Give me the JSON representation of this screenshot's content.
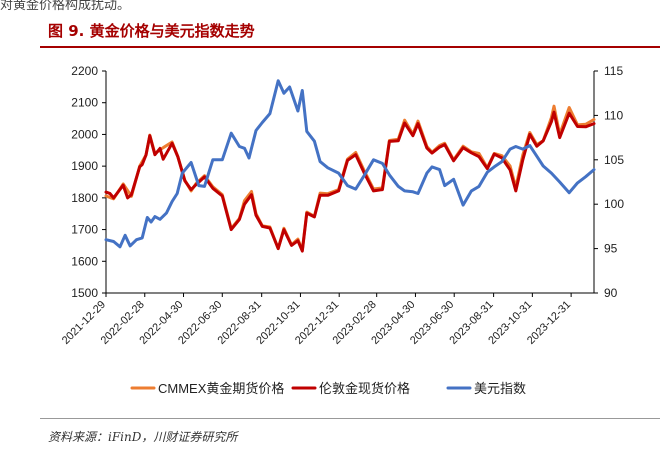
{
  "intro_text": "对黄金价格构成扰动。",
  "figure": {
    "title": "图 9.   黄金价格与美元指数走势"
  },
  "source": "资料来源：iFinD，川财证券研究所",
  "colors": {
    "cmmex": "#ED7D31",
    "london": "#C00000",
    "usd": "#4472C4",
    "title": "#A50000"
  },
  "chart_data": {
    "type": "line",
    "x_ticks": [
      "2021-12-29",
      "2022-02-28",
      "2022-04-30",
      "2022-06-30",
      "2022-08-31",
      "2022-10-31",
      "2022-12-31",
      "2023-02-28",
      "2023-04-30",
      "2023-06-30",
      "2023-08-31",
      "2023-10-31",
      "2023-12-31"
    ],
    "x_range": [
      "2021-12-29",
      "2024-02-05"
    ],
    "y_left": {
      "range": [
        1500,
        2200
      ],
      "ticks": [
        1500,
        1600,
        1700,
        1800,
        1900,
        2000,
        2100,
        2200
      ]
    },
    "y_right": {
      "range": [
        90,
        115
      ],
      "ticks": [
        90,
        95,
        100,
        105,
        110,
        115
      ]
    },
    "legend_position": "bottom",
    "series": [
      {
        "name": "CMMEX黄金期货价格",
        "axis": "left",
        "color_key": "cmmex",
        "points": [
          [
            "2021-12-29",
            1806
          ],
          [
            "2022-01-10",
            1797
          ],
          [
            "2022-01-25",
            1844
          ],
          [
            "2022-02-07",
            1805
          ],
          [
            "2022-02-20",
            1900
          ],
          [
            "2022-03-02",
            1935
          ],
          [
            "2022-03-08",
            1998
          ],
          [
            "2022-03-16",
            1940
          ],
          [
            "2022-03-29",
            1958
          ],
          [
            "2022-04-12",
            1976
          ],
          [
            "2022-04-21",
            1930
          ],
          [
            "2022-05-02",
            1856
          ],
          [
            "2022-05-12",
            1822
          ],
          [
            "2022-05-20",
            1846
          ],
          [
            "2022-06-02",
            1870
          ],
          [
            "2022-06-15",
            1835
          ],
          [
            "2022-06-30",
            1810
          ],
          [
            "2022-07-14",
            1703
          ],
          [
            "2022-07-27",
            1735
          ],
          [
            "2022-08-04",
            1791
          ],
          [
            "2022-08-15",
            1820
          ],
          [
            "2022-08-22",
            1750
          ],
          [
            "2022-09-01",
            1712
          ],
          [
            "2022-09-13",
            1708
          ],
          [
            "2022-09-26",
            1640
          ],
          [
            "2022-10-05",
            1704
          ],
          [
            "2022-10-17",
            1652
          ],
          [
            "2022-10-27",
            1670
          ],
          [
            "2022-11-03",
            1635
          ],
          [
            "2022-11-10",
            1755
          ],
          [
            "2022-11-22",
            1742
          ],
          [
            "2022-12-01",
            1815
          ],
          [
            "2022-12-13",
            1813
          ],
          [
            "2022-12-30",
            1826
          ],
          [
            "2023-01-13",
            1922
          ],
          [
            "2023-01-26",
            1943
          ],
          [
            "2023-02-08",
            1887
          ],
          [
            "2023-02-23",
            1828
          ],
          [
            "2023-03-09",
            1831
          ],
          [
            "2023-03-20",
            1981
          ],
          [
            "2023-04-03",
            1985
          ],
          [
            "2023-04-13",
            2045
          ],
          [
            "2023-04-26",
            2001
          ],
          [
            "2023-05-04",
            2042
          ],
          [
            "2023-05-18",
            1962
          ],
          [
            "2023-05-26",
            1944
          ],
          [
            "2023-06-07",
            1965
          ],
          [
            "2023-06-15",
            1972
          ],
          [
            "2023-06-29",
            1920
          ],
          [
            "2023-07-14",
            1963
          ],
          [
            "2023-07-27",
            1945
          ],
          [
            "2023-08-08",
            1940
          ],
          [
            "2023-08-21",
            1895
          ],
          [
            "2023-09-01",
            1940
          ],
          [
            "2023-09-13",
            1933
          ],
          [
            "2023-09-26",
            1900
          ],
          [
            "2023-10-05",
            1833
          ],
          [
            "2023-10-16",
            1935
          ],
          [
            "2023-10-27",
            2006
          ],
          [
            "2023-11-07",
            1968
          ],
          [
            "2023-11-17",
            1980
          ],
          [
            "2023-11-30",
            2053
          ],
          [
            "2023-12-04",
            2089
          ],
          [
            "2023-12-13",
            2000
          ],
          [
            "2023-12-28",
            2085
          ],
          [
            "2024-01-10",
            2030
          ],
          [
            "2024-01-23",
            2032
          ],
          [
            "2024-02-05",
            2047
          ]
        ]
      },
      {
        "name": "伦敦金现货价格",
        "axis": "left",
        "color_key": "london",
        "points": [
          [
            "2021-12-29",
            1818
          ],
          [
            "2022-01-04",
            1814
          ],
          [
            "2022-01-10",
            1800
          ],
          [
            "2022-01-25",
            1840
          ],
          [
            "2022-02-01",
            1800
          ],
          [
            "2022-02-07",
            1810
          ],
          [
            "2022-02-20",
            1898
          ],
          [
            "2022-02-24",
            1905
          ],
          [
            "2022-03-02",
            1935
          ],
          [
            "2022-03-08",
            1996
          ],
          [
            "2022-03-16",
            1936
          ],
          [
            "2022-03-24",
            1956
          ],
          [
            "2022-03-29",
            1922
          ],
          [
            "2022-04-12",
            1972
          ],
          [
            "2022-04-21",
            1930
          ],
          [
            "2022-05-02",
            1854
          ],
          [
            "2022-05-12",
            1826
          ],
          [
            "2022-05-20",
            1842
          ],
          [
            "2022-06-02",
            1866
          ],
          [
            "2022-06-15",
            1830
          ],
          [
            "2022-06-30",
            1806
          ],
          [
            "2022-07-14",
            1700
          ],
          [
            "2022-07-27",
            1732
          ],
          [
            "2022-08-04",
            1780
          ],
          [
            "2022-08-15",
            1810
          ],
          [
            "2022-08-22",
            1745
          ],
          [
            "2022-09-01",
            1710
          ],
          [
            "2022-09-13",
            1705
          ],
          [
            "2022-09-26",
            1640
          ],
          [
            "2022-10-05",
            1700
          ],
          [
            "2022-10-17",
            1650
          ],
          [
            "2022-10-27",
            1665
          ],
          [
            "2022-11-03",
            1632
          ],
          [
            "2022-11-10",
            1752
          ],
          [
            "2022-11-22",
            1740
          ],
          [
            "2022-12-01",
            1808
          ],
          [
            "2022-12-13",
            1808
          ],
          [
            "2022-12-30",
            1822
          ],
          [
            "2023-01-13",
            1918
          ],
          [
            "2023-01-26",
            1936
          ],
          [
            "2023-02-08",
            1880
          ],
          [
            "2023-02-23",
            1822
          ],
          [
            "2023-03-09",
            1826
          ],
          [
            "2023-03-20",
            1978
          ],
          [
            "2023-04-03",
            1980
          ],
          [
            "2023-04-13",
            2036
          ],
          [
            "2023-04-26",
            1996
          ],
          [
            "2023-05-04",
            2034
          ],
          [
            "2023-05-18",
            1957
          ],
          [
            "2023-05-26",
            1941
          ],
          [
            "2023-06-07",
            1960
          ],
          [
            "2023-06-15",
            1968
          ],
          [
            "2023-06-29",
            1917
          ],
          [
            "2023-07-14",
            1958
          ],
          [
            "2023-07-27",
            1942
          ],
          [
            "2023-08-08",
            1930
          ],
          [
            "2023-08-21",
            1892
          ],
          [
            "2023-09-01",
            1938
          ],
          [
            "2023-09-13",
            1926
          ],
          [
            "2023-09-26",
            1888
          ],
          [
            "2023-10-05",
            1822
          ],
          [
            "2023-10-16",
            1920
          ],
          [
            "2023-10-27",
            2000
          ],
          [
            "2023-11-07",
            1963
          ],
          [
            "2023-11-17",
            1980
          ],
          [
            "2023-11-30",
            2040
          ],
          [
            "2023-12-04",
            2070
          ],
          [
            "2023-12-13",
            1990
          ],
          [
            "2023-12-28",
            2067
          ],
          [
            "2024-01-10",
            2025
          ],
          [
            "2024-01-23",
            2024
          ],
          [
            "2024-02-05",
            2034
          ]
        ]
      },
      {
        "name": "美元指数",
        "axis": "right",
        "color_key": "usd",
        "points": [
          [
            "2021-12-29",
            96.0
          ],
          [
            "2022-01-10",
            95.8
          ],
          [
            "2022-01-20",
            95.2
          ],
          [
            "2022-01-28",
            96.5
          ],
          [
            "2022-02-05",
            95.3
          ],
          [
            "2022-02-15",
            96.0
          ],
          [
            "2022-02-24",
            96.2
          ],
          [
            "2022-03-04",
            98.5
          ],
          [
            "2022-03-10",
            98.0
          ],
          [
            "2022-03-16",
            98.6
          ],
          [
            "2022-03-24",
            98.3
          ],
          [
            "2022-04-03",
            99.0
          ],
          [
            "2022-04-12",
            100.3
          ],
          [
            "2022-04-20",
            101.2
          ],
          [
            "2022-04-28",
            103.5
          ],
          [
            "2022-05-12",
            104.7
          ],
          [
            "2022-05-24",
            102.1
          ],
          [
            "2022-06-02",
            102.0
          ],
          [
            "2022-06-15",
            105.0
          ],
          [
            "2022-06-30",
            105.0
          ],
          [
            "2022-07-14",
            108.0
          ],
          [
            "2022-07-27",
            106.5
          ],
          [
            "2022-08-04",
            106.3
          ],
          [
            "2022-08-11",
            105.2
          ],
          [
            "2022-08-22",
            108.3
          ],
          [
            "2022-09-01",
            109.2
          ],
          [
            "2022-09-13",
            110.2
          ],
          [
            "2022-09-26",
            113.9
          ],
          [
            "2022-10-05",
            112.5
          ],
          [
            "2022-10-14",
            113.2
          ],
          [
            "2022-10-27",
            110.5
          ],
          [
            "2022-11-03",
            112.8
          ],
          [
            "2022-11-10",
            108.2
          ],
          [
            "2022-11-22",
            107.1
          ],
          [
            "2022-12-01",
            104.8
          ],
          [
            "2022-12-13",
            104.1
          ],
          [
            "2022-12-30",
            103.5
          ],
          [
            "2023-01-13",
            102.1
          ],
          [
            "2023-01-26",
            101.7
          ],
          [
            "2023-02-08",
            103.2
          ],
          [
            "2023-02-23",
            105.0
          ],
          [
            "2023-03-09",
            104.6
          ],
          [
            "2023-03-20",
            103.3
          ],
          [
            "2023-04-03",
            102.0
          ],
          [
            "2023-04-13",
            101.5
          ],
          [
            "2023-04-26",
            101.4
          ],
          [
            "2023-05-04",
            101.2
          ],
          [
            "2023-05-18",
            103.5
          ],
          [
            "2023-05-26",
            104.2
          ],
          [
            "2023-06-07",
            103.9
          ],
          [
            "2023-06-15",
            102.1
          ],
          [
            "2023-06-29",
            102.8
          ],
          [
            "2023-07-14",
            99.9
          ],
          [
            "2023-07-27",
            101.5
          ],
          [
            "2023-08-08",
            102.0
          ],
          [
            "2023-08-21",
            103.6
          ],
          [
            "2023-09-01",
            104.2
          ],
          [
            "2023-09-13",
            104.8
          ],
          [
            "2023-09-26",
            106.2
          ],
          [
            "2023-10-05",
            106.5
          ],
          [
            "2023-10-16",
            106.2
          ],
          [
            "2023-10-27",
            106.6
          ],
          [
            "2023-11-07",
            105.4
          ],
          [
            "2023-11-17",
            104.3
          ],
          [
            "2023-11-30",
            103.5
          ],
          [
            "2023-12-13",
            102.5
          ],
          [
            "2023-12-28",
            101.3
          ],
          [
            "2024-01-10",
            102.4
          ],
          [
            "2024-01-23",
            103.1
          ],
          [
            "2024-02-05",
            103.9
          ]
        ]
      }
    ]
  }
}
